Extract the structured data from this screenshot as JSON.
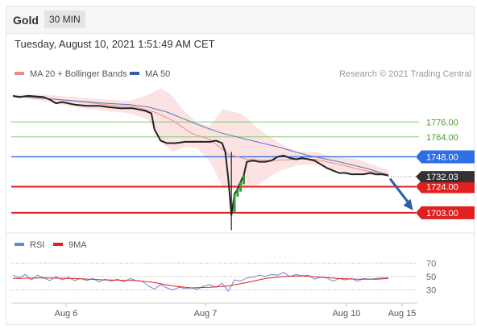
{
  "header": {
    "asset": "Gold",
    "timeframe": "30 MIN",
    "datetime": "Tuesday, August 10, 2021 1:51:49 AM CET"
  },
  "chart_data": [
    {
      "type": "line",
      "panel": "price",
      "legend": [
        {
          "name": "MA 20 + Bollinger Bands",
          "color": "#f08a8a"
        },
        {
          "name": "MA 50",
          "color": "#3b5ba9"
        }
      ],
      "credit": "Research © 2021 Trading Central",
      "x_ticks": [
        "Aug 6",
        "Aug 7",
        "Aug 10",
        "Aug 15"
      ],
      "ylim": [
        1688,
        1806
      ],
      "price_path": [
        [
          0,
          1797
        ],
        [
          2,
          1796
        ],
        [
          5,
          1797
        ],
        [
          10,
          1796
        ],
        [
          12,
          1794
        ],
        [
          14,
          1791
        ],
        [
          16,
          1792
        ],
        [
          20,
          1790
        ],
        [
          24,
          1789
        ],
        [
          28,
          1789
        ],
        [
          31,
          1788
        ],
        [
          35,
          1787
        ],
        [
          39,
          1787
        ],
        [
          43,
          1785
        ],
        [
          45,
          1783
        ],
        [
          46,
          1770
        ],
        [
          48,
          1761
        ],
        [
          50,
          1759
        ],
        [
          53,
          1759
        ],
        [
          56,
          1760
        ],
        [
          58,
          1760
        ],
        [
          61,
          1760
        ],
        [
          64,
          1760
        ],
        [
          66,
          1761
        ],
        [
          68,
          1759
        ],
        [
          69,
          1752
        ],
        [
          70,
          1730
        ],
        [
          71,
          1701
        ],
        [
          72,
          1718
        ],
        [
          73,
          1722
        ],
        [
          74,
          1728
        ],
        [
          75,
          1733
        ],
        [
          76,
          1744
        ],
        [
          78,
          1745
        ],
        [
          80,
          1744
        ],
        [
          82,
          1744
        ],
        [
          84,
          1745
        ],
        [
          86,
          1748
        ],
        [
          88,
          1749
        ],
        [
          90,
          1747
        ],
        [
          92,
          1746
        ],
        [
          94,
          1747
        ],
        [
          96,
          1746
        ],
        [
          98,
          1745
        ],
        [
          100,
          1742
        ],
        [
          102,
          1739
        ],
        [
          104,
          1737
        ],
        [
          106,
          1735
        ],
        [
          108,
          1735
        ],
        [
          110,
          1734
        ],
        [
          112,
          1734
        ],
        [
          114,
          1734
        ],
        [
          116,
          1735
        ],
        [
          118,
          1734
        ],
        [
          120,
          1734
        ],
        [
          122,
          1733
        ]
      ],
      "ma50_path": [
        [
          0,
          1797
        ],
        [
          10,
          1795
        ],
        [
          20,
          1793
        ],
        [
          30,
          1791
        ],
        [
          38,
          1790
        ],
        [
          44,
          1788
        ],
        [
          50,
          1784
        ],
        [
          56,
          1778
        ],
        [
          62,
          1772
        ],
        [
          68,
          1767
        ],
        [
          76,
          1762
        ],
        [
          86,
          1756
        ],
        [
          96,
          1749
        ],
        [
          106,
          1744
        ],
        [
          116,
          1738
        ],
        [
          122,
          1733
        ]
      ],
      "ma20_path": [
        [
          0,
          1797
        ],
        [
          10,
          1795
        ],
        [
          20,
          1793
        ],
        [
          30,
          1790
        ],
        [
          40,
          1788
        ],
        [
          46,
          1784
        ],
        [
          52,
          1777
        ],
        [
          58,
          1767
        ],
        [
          64,
          1762
        ],
        [
          70,
          1750
        ],
        [
          76,
          1746
        ],
        [
          84,
          1745
        ],
        [
          92,
          1746
        ],
        [
          98,
          1746
        ],
        [
          106,
          1742
        ],
        [
          114,
          1737
        ],
        [
          122,
          1734
        ]
      ],
      "bollinger_upper": [
        [
          0,
          1798
        ],
        [
          10,
          1798
        ],
        [
          20,
          1796
        ],
        [
          30,
          1794
        ],
        [
          38,
          1793
        ],
        [
          44,
          1798
        ],
        [
          48,
          1803
        ],
        [
          51,
          1799
        ],
        [
          56,
          1784
        ],
        [
          60,
          1775
        ],
        [
          64,
          1773
        ],
        [
          66,
          1779
        ],
        [
          68,
          1786
        ],
        [
          74,
          1783
        ],
        [
          80,
          1770
        ],
        [
          86,
          1760
        ],
        [
          92,
          1752
        ],
        [
          98,
          1752
        ],
        [
          104,
          1748
        ],
        [
          112,
          1746
        ],
        [
          122,
          1737
        ]
      ],
      "bollinger_lower": [
        [
          0,
          1796
        ],
        [
          10,
          1793
        ],
        [
          20,
          1788
        ],
        [
          30,
          1785
        ],
        [
          38,
          1783
        ],
        [
          44,
          1778
        ],
        [
          48,
          1760
        ],
        [
          52,
          1752
        ],
        [
          56,
          1756
        ],
        [
          60,
          1755
        ],
        [
          64,
          1744
        ],
        [
          68,
          1725
        ],
        [
          72,
          1722
        ],
        [
          76,
          1723
        ],
        [
          80,
          1726
        ],
        [
          86,
          1736
        ],
        [
          92,
          1741
        ],
        [
          98,
          1742
        ],
        [
          104,
          1738
        ],
        [
          112,
          1734
        ],
        [
          122,
          1732
        ]
      ],
      "support_resistance": [
        {
          "value": 1776,
          "label": "1776.00",
          "color": "#7fcc66",
          "kind": "thin"
        },
        {
          "value": 1764,
          "label": "1764.00",
          "color": "#7fcc66",
          "kind": "thin"
        },
        {
          "value": 1748,
          "label": "1748.00",
          "color": "#2e6fe6",
          "kind": "box"
        },
        {
          "value": 1724,
          "label": "1724.00",
          "color": "#e02020",
          "kind": "box"
        },
        {
          "value": 1703,
          "label": "1703.00",
          "color": "#e02020",
          "kind": "box"
        }
      ],
      "last_price": {
        "value": 1732.03,
        "label": "1732.03",
        "color": "#333333"
      },
      "forecast_arrow": {
        "from": [
          122,
          1733
        ],
        "to": [
          130,
          1705
        ],
        "color": "#2a5fa8"
      }
    },
    {
      "type": "line",
      "panel": "rsi",
      "legend": [
        {
          "name": "RSI",
          "color": "#6688dd"
        },
        {
          "name": "9MA",
          "color": "#e02020"
        }
      ],
      "ylim": [
        15,
        80
      ],
      "levels": [
        {
          "value": 70,
          "label": "70"
        },
        {
          "value": 50,
          "label": "50"
        },
        {
          "value": 30,
          "label": "30"
        }
      ],
      "rsi": [
        [
          0,
          52
        ],
        [
          2,
          48
        ],
        [
          4,
          53
        ],
        [
          6,
          45
        ],
        [
          8,
          52
        ],
        [
          10,
          48
        ],
        [
          12,
          44
        ],
        [
          14,
          50
        ],
        [
          16,
          45
        ],
        [
          18,
          49
        ],
        [
          20,
          44
        ],
        [
          22,
          47
        ],
        [
          24,
          44
        ],
        [
          26,
          47
        ],
        [
          28,
          42
        ],
        [
          30,
          46
        ],
        [
          32,
          43
        ],
        [
          34,
          46
        ],
        [
          36,
          42
        ],
        [
          38,
          47
        ],
        [
          40,
          44
        ],
        [
          42,
          43
        ],
        [
          44,
          36
        ],
        [
          46,
          31
        ],
        [
          48,
          38
        ],
        [
          50,
          33
        ],
        [
          52,
          30
        ],
        [
          54,
          34
        ],
        [
          56,
          32
        ],
        [
          58,
          33
        ],
        [
          60,
          31
        ],
        [
          62,
          36
        ],
        [
          64,
          38
        ],
        [
          66,
          34
        ],
        [
          68,
          40
        ],
        [
          70,
          28
        ],
        [
          72,
          45
        ],
        [
          74,
          43
        ],
        [
          76,
          48
        ],
        [
          78,
          49
        ],
        [
          80,
          52
        ],
        [
          82,
          50
        ],
        [
          84,
          53
        ],
        [
          86,
          52
        ],
        [
          88,
          56
        ],
        [
          90,
          50
        ],
        [
          92,
          53
        ],
        [
          94,
          51
        ],
        [
          96,
          52
        ],
        [
          98,
          46
        ],
        [
          100,
          49
        ],
        [
          102,
          48
        ],
        [
          104,
          43
        ],
        [
          106,
          47
        ],
        [
          108,
          45
        ],
        [
          110,
          47
        ],
        [
          112,
          43
        ],
        [
          114,
          47
        ],
        [
          116,
          46
        ],
        [
          118,
          47
        ],
        [
          120,
          48
        ],
        [
          122,
          48
        ]
      ],
      "ma9": [
        [
          0,
          47
        ],
        [
          10,
          48
        ],
        [
          20,
          47
        ],
        [
          30,
          45
        ],
        [
          40,
          44
        ],
        [
          46,
          41
        ],
        [
          52,
          36
        ],
        [
          58,
          33
        ],
        [
          64,
          34
        ],
        [
          70,
          36
        ],
        [
          76,
          41
        ],
        [
          82,
          47
        ],
        [
          88,
          50
        ],
        [
          94,
          51
        ],
        [
          100,
          49
        ],
        [
          106,
          47
        ],
        [
          112,
          46
        ],
        [
          118,
          46
        ],
        [
          122,
          47
        ]
      ]
    }
  ]
}
